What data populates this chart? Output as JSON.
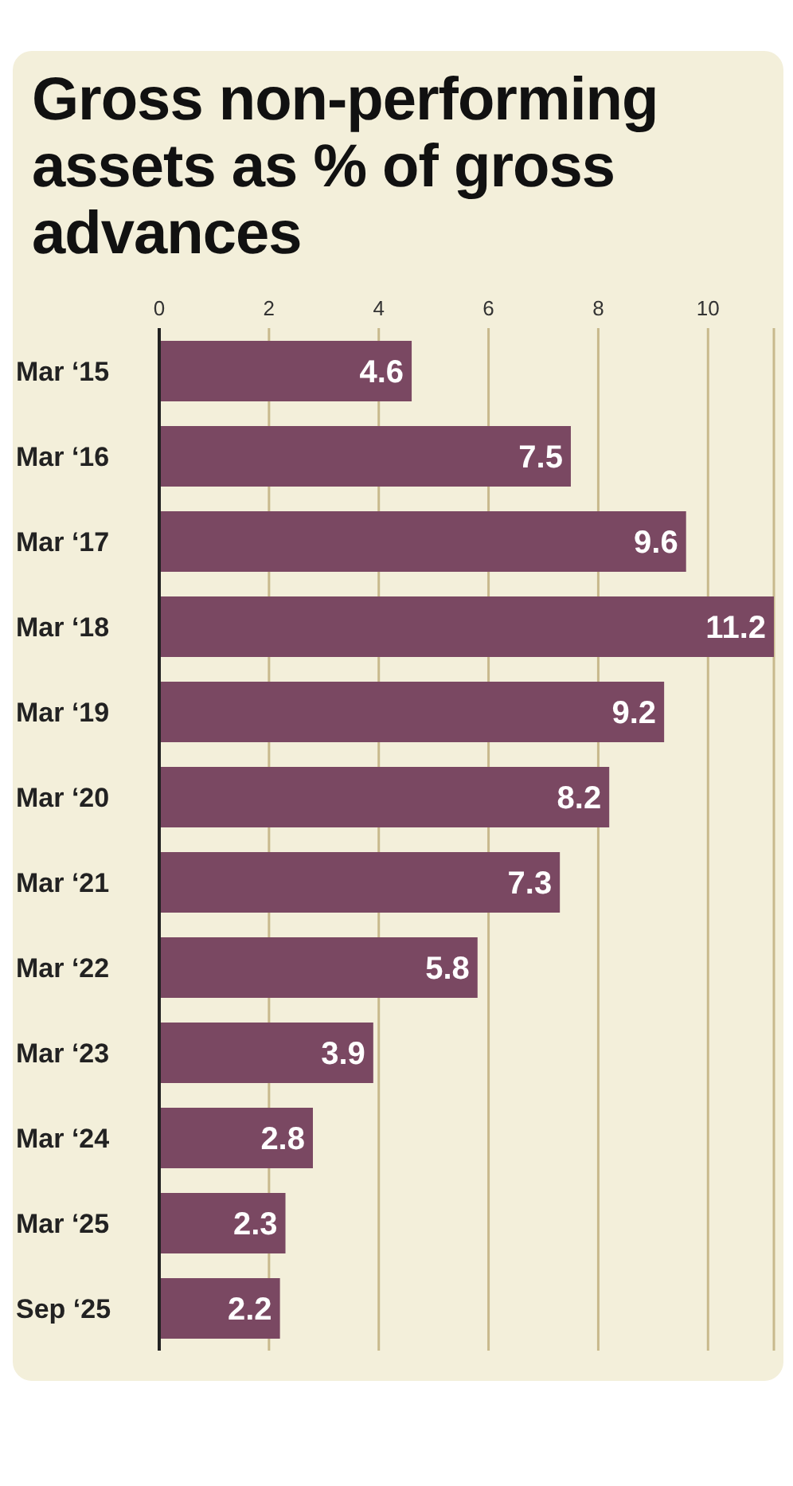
{
  "chart_data": {
    "type": "bar",
    "orientation": "horizontal",
    "title": "Gross non-performing assets as % of gross advances",
    "categories": [
      "Mar ‘15",
      "Mar ‘16",
      "Mar ‘17",
      "Mar ‘18",
      "Mar ‘19",
      "Mar ‘20",
      "Mar ‘21",
      "Mar ‘22",
      "Mar ‘23",
      "Mar ‘24",
      "Mar ‘25",
      "Sep ‘25"
    ],
    "values": [
      4.6,
      7.5,
      9.6,
      11.2,
      9.2,
      8.2,
      7.3,
      5.8,
      3.9,
      2.8,
      2.3,
      2.2
    ],
    "color": "#7a4862",
    "xlim": [
      0,
      11.2
    ],
    "xticks": [
      0,
      2,
      4,
      6,
      8,
      10
    ],
    "grid": "x",
    "data_labels": true,
    "legend": false
  }
}
